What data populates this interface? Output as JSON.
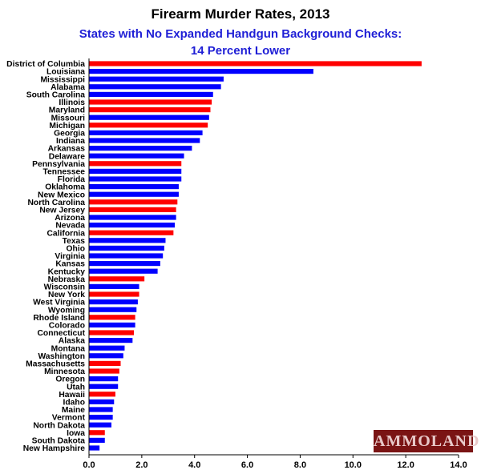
{
  "header": {
    "title": "Firearm Murder Rates, 2013",
    "subtitle": "States with No Expanded Handgun Background Checks:",
    "subtitle2": "14 Percent Lower"
  },
  "watermark": "AMMOLAND",
  "colors": {
    "expanded": "#ff0000",
    "not_expanded": "#0000ff",
    "axis": "#000000"
  },
  "chart_data": {
    "type": "bar",
    "orientation": "horizontal",
    "title": "Firearm Murder Rates, 2013",
    "subtitle": "States with No Expanded Handgun Background Checks: 14 Percent Lower",
    "xlim": [
      0,
      14
    ],
    "xticks": [
      "0.0",
      "2.0",
      "4.0",
      "6.0",
      "8.0",
      "10.0",
      "12.0",
      "14.0"
    ],
    "grid": false,
    "categories": [
      "District of Columbia",
      "Louisiana",
      "Mississippi",
      "Alabama",
      "South Carolina",
      "Illinois",
      "Maryland",
      "Missouri",
      "Michigan",
      "Georgia",
      "Indiana",
      "Arkansas",
      "Delaware",
      "Pennsylvania",
      "Tennessee",
      "Florida",
      "Oklahoma",
      "New Mexico",
      "North Carolina",
      "New Jersey",
      "Arizona",
      "Nevada",
      "California",
      "Texas",
      "Ohio",
      "Virginia",
      "Kansas",
      "Kentucky",
      "Nebraska",
      "Wisconsin",
      "New York",
      "West Virginia",
      "Wyoming",
      "Rhode Island",
      "Colorado",
      "Connecticut",
      "Alaska",
      "Montana",
      "Washington",
      "Massachusetts",
      "Minnesota",
      "Oregon",
      "Utah",
      "Hawaii",
      "Idaho",
      "Maine",
      "Vermont",
      "North Dakota",
      "Iowa",
      "South Dakota",
      "New Hampshire"
    ],
    "values": [
      12.6,
      8.5,
      5.1,
      5.0,
      4.7,
      4.65,
      4.6,
      4.55,
      4.5,
      4.3,
      4.2,
      3.9,
      3.6,
      3.5,
      3.5,
      3.5,
      3.4,
      3.4,
      3.35,
      3.3,
      3.3,
      3.25,
      3.2,
      2.9,
      2.85,
      2.8,
      2.7,
      2.6,
      2.1,
      1.9,
      1.9,
      1.85,
      1.8,
      1.75,
      1.75,
      1.7,
      1.65,
      1.35,
      1.3,
      1.2,
      1.15,
      1.1,
      1.1,
      1.0,
      0.95,
      0.9,
      0.9,
      0.85,
      0.6,
      0.6,
      0.4
    ],
    "expanded_checks": [
      true,
      false,
      false,
      false,
      false,
      true,
      true,
      false,
      true,
      false,
      false,
      false,
      false,
      true,
      false,
      false,
      false,
      false,
      true,
      true,
      false,
      false,
      true,
      false,
      false,
      false,
      false,
      false,
      true,
      false,
      true,
      false,
      false,
      true,
      false,
      true,
      false,
      false,
      false,
      true,
      true,
      false,
      false,
      true,
      false,
      false,
      false,
      false,
      true,
      false,
      false
    ]
  }
}
